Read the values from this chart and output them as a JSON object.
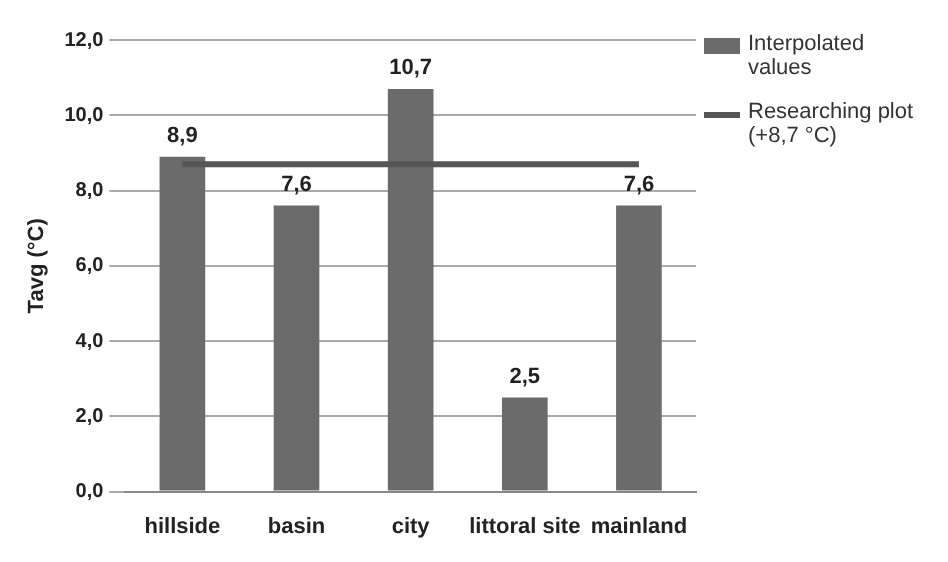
{
  "chart_data": {
    "type": "bar",
    "ylabel": "Tavg (°C)",
    "categories": [
      "hillside",
      "basin",
      "city",
      "littoral site",
      "mainland"
    ],
    "series": [
      {
        "name": "Interpolated values",
        "color": "#6b6b6b",
        "values": [
          8.9,
          7.6,
          10.7,
          2.5,
          7.6
        ],
        "value_labels": [
          "8,9",
          "7,6",
          "10,7",
          "2,5",
          "7,6"
        ]
      },
      {
        "name": "Researching plot (+8,7 °C)",
        "type": "line",
        "color": "#555555",
        "values": [
          8.7,
          8.7,
          8.7,
          8.7,
          8.7
        ]
      }
    ],
    "ylim": [
      0,
      12
    ],
    "yticks": [
      {
        "value": 0,
        "label": "0,0"
      },
      {
        "value": 2,
        "label": "2,0"
      },
      {
        "value": 4,
        "label": "4,0"
      },
      {
        "value": 6,
        "label": "6,0"
      },
      {
        "value": 8,
        "label": "8,0"
      },
      {
        "value": 10,
        "label": "10,0"
      },
      {
        "value": 12,
        "label": "12,0"
      }
    ],
    "grid": "y",
    "legend": "top right",
    "marker": "none"
  }
}
